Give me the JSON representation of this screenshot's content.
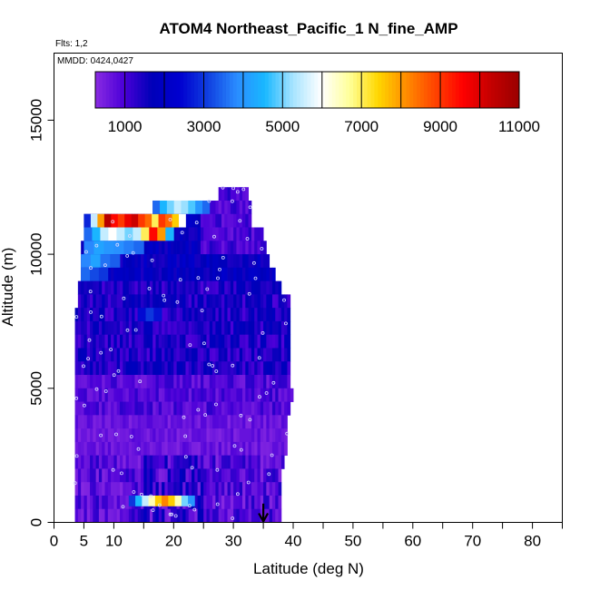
{
  "chart_data": {
    "type": "heatmap",
    "title": "ATOM4 Northeast_Pacific_1 N_fine_AMP",
    "flights_note": "Flts: 1,2",
    "dates_note": "MMDD: 0424,0427",
    "xlabel": "Latitude (deg N)",
    "ylabel": "Altitude (m)",
    "xlim": [
      0,
      85
    ],
    "ylim": [
      0,
      17500
    ],
    "x_ticks": [
      0,
      5,
      10,
      20,
      30,
      40,
      50,
      60,
      70,
      80
    ],
    "x_minor_ticks": [
      15,
      25,
      35,
      45,
      55,
      65,
      75,
      85
    ],
    "y_ticks": [
      0,
      5000,
      10000,
      15000
    ],
    "colorbar": {
      "range": [
        250,
        11000
      ],
      "tick_values": [
        1000,
        3000,
        5000,
        7000,
        9000,
        11000
      ],
      "division_values": [
        1000,
        2000,
        3000,
        4000,
        5000,
        6000,
        7000,
        8000,
        9000,
        10000,
        11000
      ],
      "colors": [
        "#8a2be2",
        "#4b00d8",
        "#0000b8",
        "#0000d0",
        "#1040e0",
        "#2a8cff",
        "#19b8ff",
        "#a8e4ff",
        "#ffffff",
        "#ffff99",
        "#ffd700",
        "#ff8c00",
        "#ff4500",
        "#ff0000",
        "#c40000",
        "#9a0000"
      ]
    },
    "profile_bins": [
      {
        "alt_low": 12000,
        "alt_high": 12500,
        "lat_start": 27.5,
        "lat_end": 32.5
      },
      {
        "alt_low": 11500,
        "alt_high": 12000,
        "lat_start": 16.5,
        "lat_end": 33.0
      },
      {
        "alt_low": 11000,
        "alt_high": 11500,
        "lat_start": 5.0,
        "lat_end": 33.0
      },
      {
        "alt_low": 10500,
        "alt_high": 11000,
        "lat_start": 5.0,
        "lat_end": 35.0
      },
      {
        "alt_low": 10000,
        "alt_high": 10500,
        "lat_start": 4.5,
        "lat_end": 35.5
      },
      {
        "alt_low": 9500,
        "alt_high": 10000,
        "lat_start": 4.5,
        "lat_end": 36.0
      },
      {
        "alt_low": 9000,
        "alt_high": 9500,
        "lat_start": 4.5,
        "lat_end": 37.0
      },
      {
        "alt_low": 8500,
        "alt_high": 9000,
        "lat_start": 4.0,
        "lat_end": 38.0
      },
      {
        "alt_low": 8000,
        "alt_high": 8500,
        "lat_start": 4.0,
        "lat_end": 39.5
      },
      {
        "alt_low": 7500,
        "alt_high": 8000,
        "lat_start": 3.5,
        "lat_end": 39.5
      },
      {
        "alt_low": 7000,
        "alt_high": 7500,
        "lat_start": 3.5,
        "lat_end": 39.5
      },
      {
        "alt_low": 6500,
        "alt_high": 7000,
        "lat_start": 3.5,
        "lat_end": 39.5
      },
      {
        "alt_low": 6000,
        "alt_high": 6500,
        "lat_start": 3.5,
        "lat_end": 39.5
      },
      {
        "alt_low": 5500,
        "alt_high": 6000,
        "lat_start": 3.5,
        "lat_end": 39.5
      },
      {
        "alt_low": 5000,
        "alt_high": 5500,
        "lat_start": 3.5,
        "lat_end": 39.5
      },
      {
        "alt_low": 4500,
        "alt_high": 5000,
        "lat_start": 3.5,
        "lat_end": 40.0
      },
      {
        "alt_low": 4000,
        "alt_high": 4500,
        "lat_start": 3.5,
        "lat_end": 39.5
      },
      {
        "alt_low": 3500,
        "alt_high": 4000,
        "lat_start": 3.5,
        "lat_end": 39.0
      },
      {
        "alt_low": 3000,
        "alt_high": 3500,
        "lat_start": 3.5,
        "lat_end": 39.0
      },
      {
        "alt_low": 2500,
        "alt_high": 3000,
        "lat_start": 3.5,
        "lat_end": 39.0
      },
      {
        "alt_low": 2000,
        "alt_high": 2500,
        "lat_start": 3.5,
        "lat_end": 38.5
      },
      {
        "alt_low": 1500,
        "alt_high": 2000,
        "lat_start": 3.5,
        "lat_end": 38.0
      },
      {
        "alt_low": 1000,
        "alt_high": 1500,
        "lat_start": 3.5,
        "lat_end": 38.0
      },
      {
        "alt_low": 500,
        "alt_high": 1000,
        "lat_start": 3.5,
        "lat_end": 38.0
      },
      {
        "alt_low": 0,
        "alt_high": 500,
        "lat_start": 3.5,
        "lat_end": 38.0
      }
    ],
    "hotspots": [
      {
        "alt_low": 11000,
        "alt_high": 11500,
        "lat_start": 5.0,
        "lat_end": 22.0,
        "values": [
          2800,
          5500,
          8000,
          10500,
          9500,
          9000,
          9800,
          10200,
          9000,
          8500,
          7000,
          9000,
          8500,
          7500,
          6000
        ]
      },
      {
        "alt_low": 10500,
        "alt_high": 11000,
        "lat_start": 5.0,
        "lat_end": 20.0,
        "values": [
          3500,
          4500,
          5500,
          6000,
          5500,
          5000,
          5500,
          7000,
          9500,
          8000,
          4500
        ]
      },
      {
        "alt_low": 11500,
        "alt_high": 12000,
        "lat_start": 16.5,
        "lat_end": 26.0,
        "values": [
          3500,
          4500,
          5000,
          5500,
          5200,
          4800,
          4000,
          3500
        ]
      },
      {
        "alt_low": 600,
        "alt_high": 1000,
        "lat_start": 12.5,
        "lat_end": 23.5,
        "values": [
          3000,
          4500,
          5500,
          6500,
          7500,
          8200,
          7500,
          6500,
          5000,
          4000
        ]
      },
      {
        "alt_low": 10000,
        "alt_high": 10500,
        "lat_start": 5.0,
        "lat_end": 15.0,
        "values": [
          3800,
          4200,
          4000,
          3900,
          3700,
          3500
        ]
      },
      {
        "alt_low": 9500,
        "alt_high": 10000,
        "lat_start": 4.5,
        "lat_end": 11.0,
        "values": [
          3800,
          4200,
          3600,
          3400
        ]
      },
      {
        "alt_low": 9000,
        "alt_high": 9500,
        "lat_start": 4.5,
        "lat_end": 9.0,
        "values": [
          3500,
          3200,
          3000
        ]
      },
      {
        "alt_low": 7500,
        "alt_high": 8000,
        "lat_start": 14.0,
        "lat_end": 18.0,
        "values": [
          2500,
          3000,
          2600
        ]
      }
    ],
    "arrow": {
      "latitude": 35.0,
      "alt_top": 700,
      "alt_bottom": 0
    }
  }
}
